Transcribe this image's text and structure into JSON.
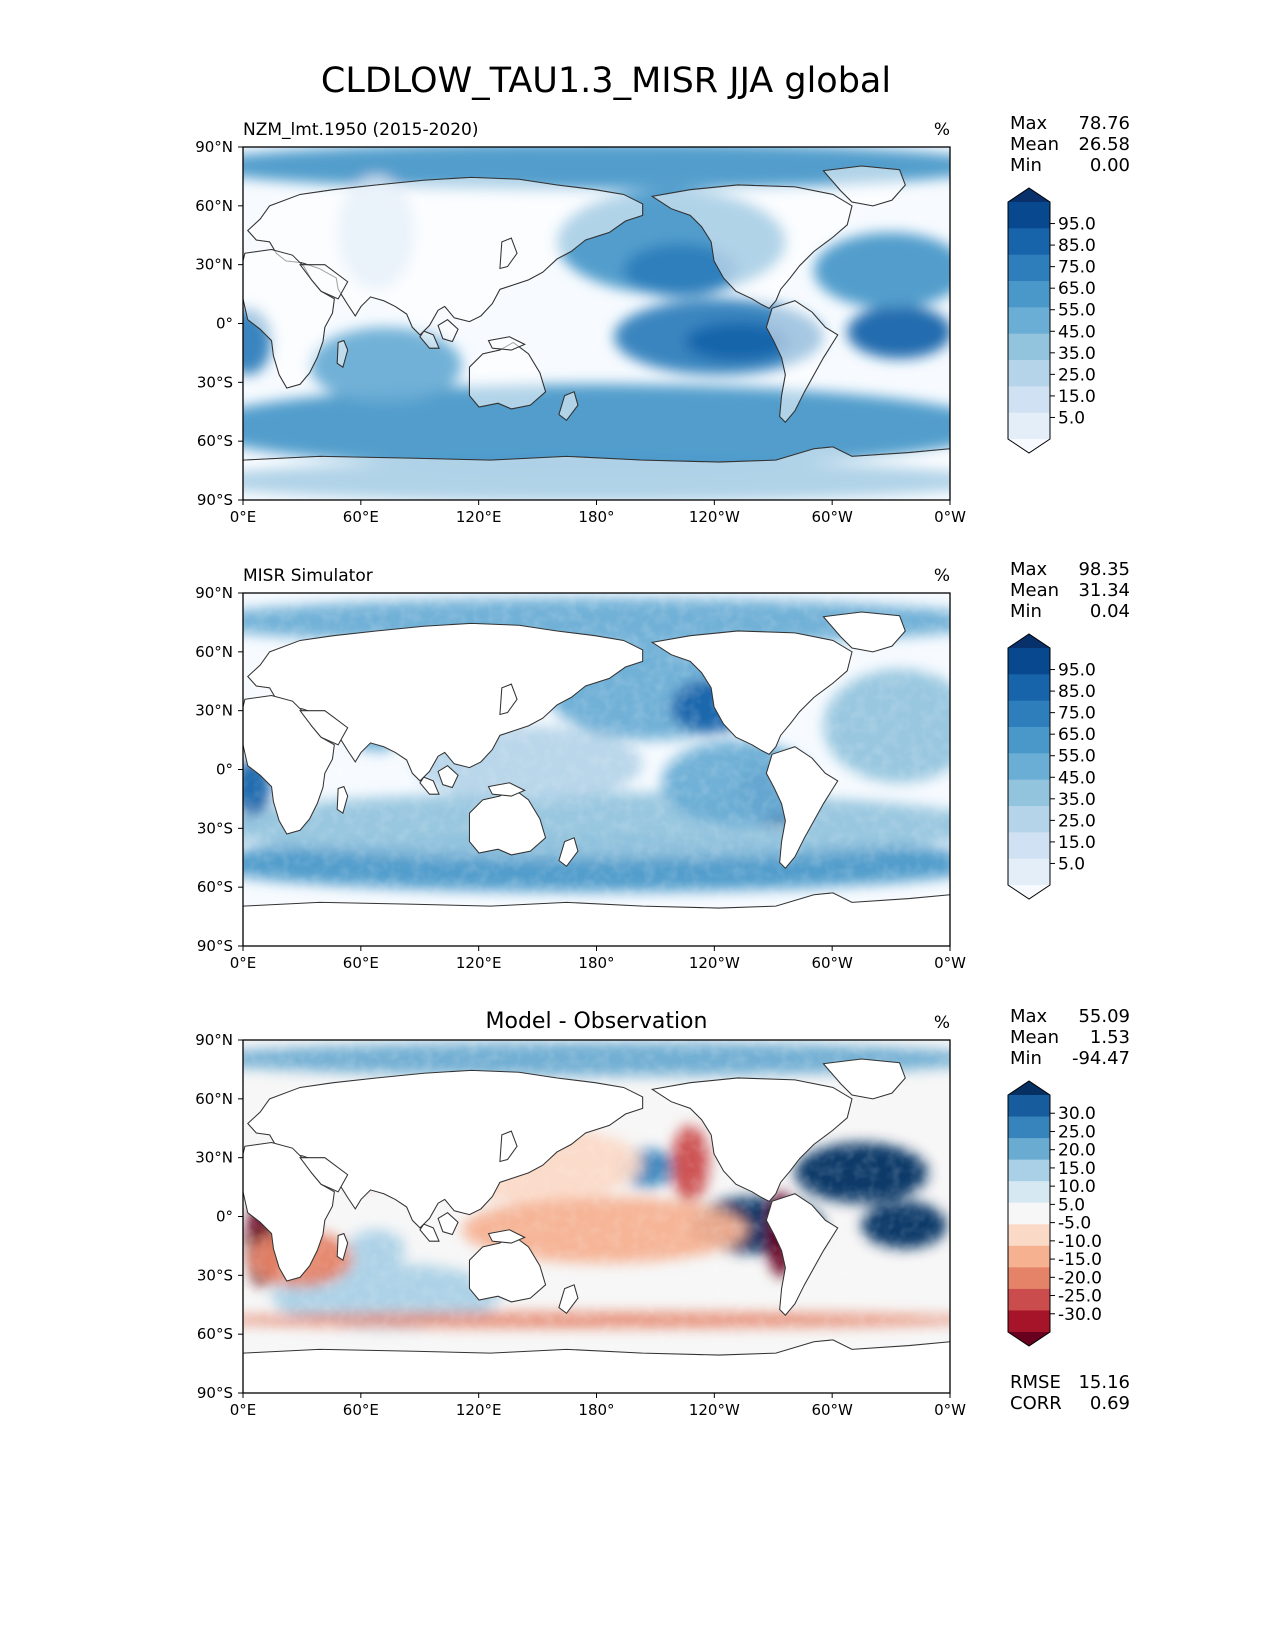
{
  "figure": {
    "title": "CLDLOW_TAU1.3_MISR JJA global"
  },
  "axes": {
    "lat_ticks": [
      "90°N",
      "60°N",
      "30°N",
      "0°",
      "30°S",
      "60°S",
      "90°S"
    ],
    "lon_ticks": [
      "0°E",
      "60°E",
      "120°E",
      "180°",
      "120°W",
      "60°W",
      "0°W"
    ]
  },
  "colormaps": {
    "sequential_blues": [
      "#f7fbff",
      "#e3eef9",
      "#cfe1f2",
      "#b5d4e9",
      "#93c4de",
      "#6aadd5",
      "#4a98c9",
      "#2e7ebc",
      "#1764ab",
      "#08488e",
      "#08306b"
    ],
    "diverging_rdbu": [
      "#67001f",
      "#a51429",
      "#cb4c4c",
      "#e58368",
      "#f6b191",
      "#fbd9c7",
      "#f7f7f7",
      "#d6e8f1",
      "#a9d0e6",
      "#6aabd1",
      "#3783bb",
      "#175d9e",
      "#053061"
    ]
  },
  "panels": [
    {
      "id": "test",
      "title": "",
      "subtitle": "NZM_lmt.1950 (2015-2020)",
      "units": "%",
      "stats": [
        {
          "label": "Max",
          "value": "78.76"
        },
        {
          "label": "Mean",
          "value": "26.58"
        },
        {
          "label": "Min",
          "value": "0.00"
        }
      ],
      "colorbar": {
        "type": "sequential",
        "labels": [
          "95.0",
          "85.0",
          "75.0",
          "65.0",
          "55.0",
          "45.0",
          "35.0",
          "25.0",
          "15.0",
          "5.0"
        ]
      },
      "metrics": []
    },
    {
      "id": "reference",
      "title": "",
      "subtitle": "MISR Simulator",
      "units": "%",
      "stats": [
        {
          "label": "Max",
          "value": "98.35"
        },
        {
          "label": "Mean",
          "value": "31.34"
        },
        {
          "label": "Min",
          "value": "0.04"
        }
      ],
      "colorbar": {
        "type": "sequential",
        "labels": [
          "95.0",
          "85.0",
          "75.0",
          "65.0",
          "55.0",
          "45.0",
          "35.0",
          "25.0",
          "15.0",
          "5.0"
        ]
      },
      "metrics": []
    },
    {
      "id": "diff",
      "title": "Model - Observation",
      "subtitle": "",
      "units": "%",
      "stats": [
        {
          "label": "Max",
          "value": "55.09"
        },
        {
          "label": "Mean",
          "value": "1.53"
        },
        {
          "label": "Min",
          "value": "-94.47"
        }
      ],
      "colorbar": {
        "type": "diverging",
        "labels": [
          "30.0",
          "25.0",
          "20.0",
          "15.0",
          "10.0",
          "5.0",
          "-5.0",
          "-10.0",
          "-15.0",
          "-20.0",
          "-25.0",
          "-30.0"
        ]
      },
      "metrics": [
        {
          "label": "RMSE",
          "value": "15.16"
        },
        {
          "label": "CORR",
          "value": "0.69"
        }
      ]
    }
  ]
}
